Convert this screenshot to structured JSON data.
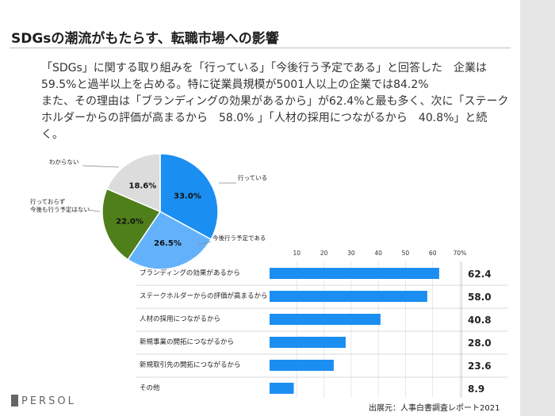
{
  "slide": {
    "title": "SDGsの潮流がもたらす、転職市場への影響",
    "body_lines": [
      "「SDGs」に関する取り組みを「行っている」「今後行う予定である」と回答した　企業は",
      "59.5%と過半以上を占める。特に従業員規模が5001人以上の企業では84.2%",
      "また、その理由は「ブランディングの効果があるから」が62.4%と最も多く、次に「ステーク",
      "ホルダーからの評価が高まるから　58.0% 」「人材の採用につながるから　40.8%」と続",
      "く。"
    ],
    "source": "出展元：人事白書調査レポート2021",
    "logo_text": "PERSOL"
  },
  "chart_data": [
    {
      "type": "pie",
      "labels": [
        "行っている",
        "今後行う予定である",
        "行っておらず\n今後も行う予定はない",
        "わからない"
      ],
      "label_lines": [
        [
          "行っている"
        ],
        [
          "今後行う予定である"
        ],
        [
          "行っておらず",
          "今後も行う予定はない"
        ],
        [
          "わからない"
        ]
      ],
      "values": [
        33.0,
        26.5,
        22.0,
        18.6
      ],
      "value_labels": [
        "33.0%",
        "26.5%",
        "22.0%",
        "18.6%"
      ],
      "colors": [
        "#1b8ef2",
        "#63b1fa",
        "#4f7f1b",
        "#dcdcdc"
      ]
    },
    {
      "type": "bar",
      "orientation": "horizontal",
      "categories": [
        "ブランディングの効果があるから",
        "ステークホルダーからの評価が高まるから",
        "人材の採用につながるから",
        "新規事業の開拓につながるから",
        "新規取引先の開拓につながるから",
        "その他"
      ],
      "values": [
        62.4,
        58.0,
        40.8,
        28.0,
        23.6,
        8.9
      ],
      "value_labels": [
        "62.4",
        "58.0",
        "40.8",
        "28.0",
        "23.6",
        "8.9"
      ],
      "xlim": [
        0,
        70
      ],
      "tick_labels": [
        "10",
        "20",
        "30",
        "40",
        "50",
        "60",
        "70%"
      ],
      "color": "#1b8ef2",
      "grid": true
    }
  ]
}
